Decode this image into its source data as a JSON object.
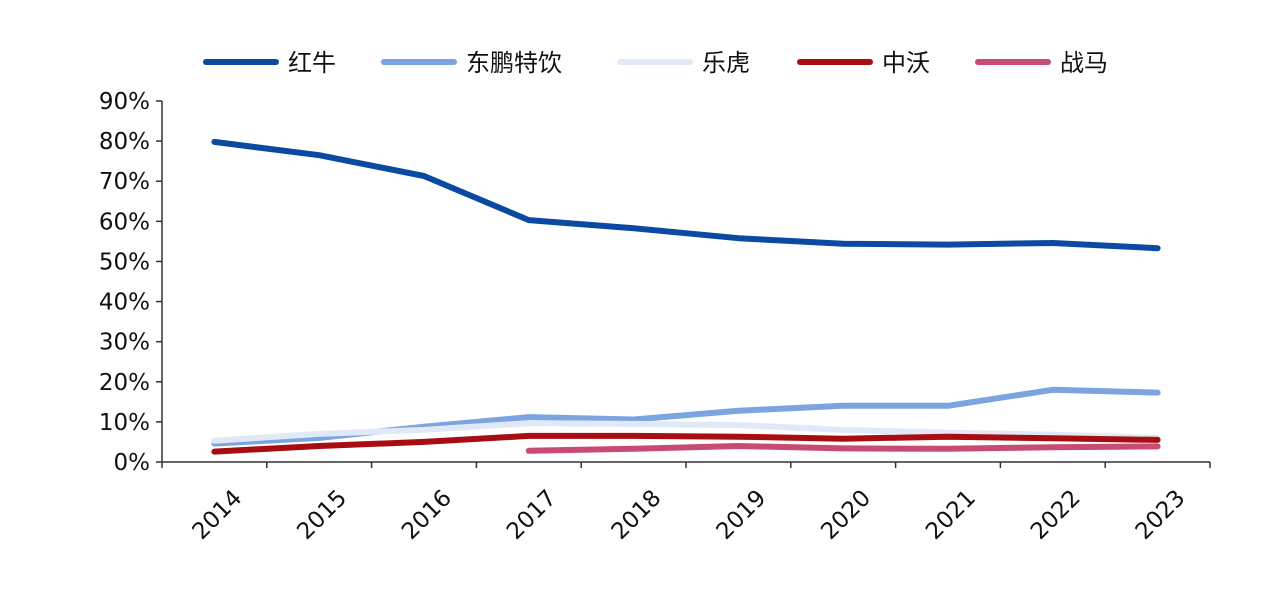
{
  "chart_data": {
    "type": "line",
    "x": [
      "2014",
      "2015",
      "2016",
      "2017",
      "2018",
      "2019",
      "2020",
      "2021",
      "2022",
      "2023"
    ],
    "yticks": [
      "0%",
      "10%",
      "20%",
      "30%",
      "40%",
      "50%",
      "60%",
      "70%",
      "80%",
      "90%"
    ],
    "ylim": [
      0,
      90
    ],
    "grid": false,
    "legend_position": "top",
    "series": [
      {
        "name": "红牛",
        "color": "#0b4aa2",
        "values": [
          79.8,
          76.5,
          71.3,
          60.3,
          58.3,
          55.8,
          54.4,
          54.2,
          54.6,
          53.3
        ]
      },
      {
        "name": "东鹏特饮",
        "color": "#7ba4e0",
        "values": [
          4.6,
          6.0,
          8.8,
          11.2,
          10.6,
          12.8,
          14.0,
          14.0,
          18.0,
          17.3
        ]
      },
      {
        "name": "乐虎",
        "color": "#dfe9f7",
        "values": [
          5.3,
          7.0,
          8.0,
          9.7,
          9.5,
          9.2,
          8.0,
          7.3,
          6.8,
          6.0
        ]
      },
      {
        "name": "中沃",
        "color": "#a80d12",
        "values": [
          2.6,
          4.0,
          5.0,
          6.5,
          6.5,
          6.3,
          5.8,
          6.3,
          5.9,
          5.5
        ]
      },
      {
        "name": "战马",
        "color": "#c84c72",
        "values": [
          null,
          null,
          null,
          2.8,
          3.3,
          4.0,
          3.4,
          3.3,
          3.7,
          3.9
        ]
      }
    ]
  }
}
